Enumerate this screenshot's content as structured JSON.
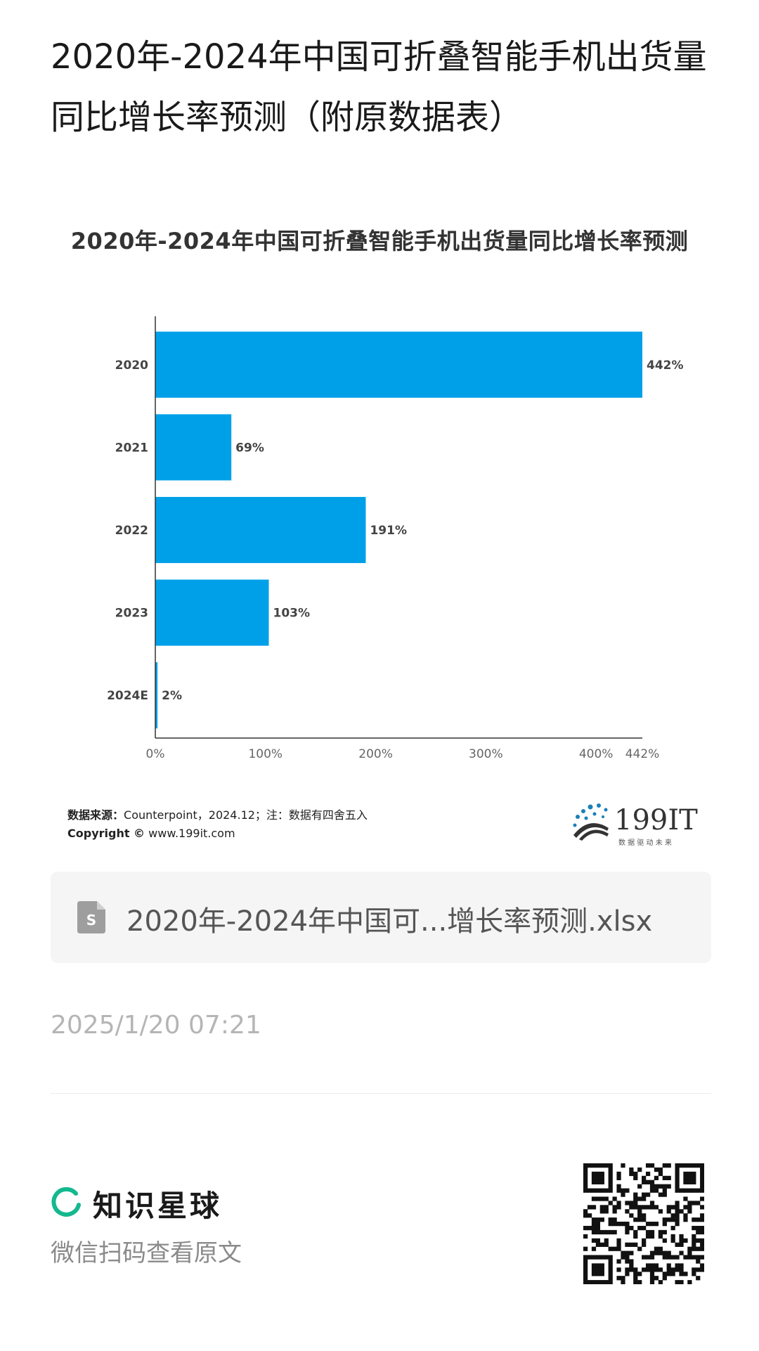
{
  "article": {
    "title": "2020年-2024年中国可折叠智能手机出货量同比增长率预测（附原数据表）"
  },
  "chart_data": {
    "type": "bar",
    "orientation": "horizontal",
    "title": "2020年-2024年中国可折叠智能手机出货量同比增长率预测",
    "categories": [
      "2020",
      "2021",
      "2022",
      "2023",
      "2024E"
    ],
    "values": [
      442,
      69,
      191,
      103,
      2
    ],
    "value_labels": [
      "442%",
      "69%",
      "191%",
      "103%",
      "2%"
    ],
    "x_ticks": [
      "0%",
      "100%",
      "200%",
      "300%",
      "400%",
      "442%"
    ],
    "x_tick_values": [
      0,
      100,
      200,
      300,
      400,
      442
    ],
    "xlim": [
      0,
      442
    ],
    "xlabel": "",
    "ylabel": "",
    "grid": false,
    "bar_color": "#00a0e9"
  },
  "source": {
    "label": "数据来源：",
    "text": "Counterpoint，2024.12；注：数据有四舍五入",
    "copyright_label": "Copyright ©",
    "copyright_url": "www.199it.com"
  },
  "brand": {
    "name": "199IT",
    "tagline": "数 据 驱 动 未 来"
  },
  "attachment": {
    "icon": "spreadsheet-file-icon",
    "filename": "2020年-2024年中国可...增长率预测.xlsx"
  },
  "post": {
    "date": "2025/1/20 07:21"
  },
  "footer": {
    "platform_name": "知识星球",
    "scan_hint": "微信扫码查看原文",
    "accent_color": "#14b88f"
  }
}
